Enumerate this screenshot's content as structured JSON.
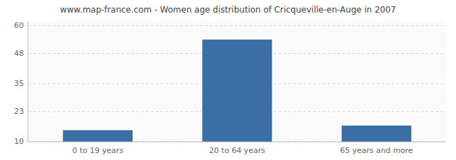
{
  "chart_data": {
    "type": "bar",
    "title": "www.map-france.com - Women age distribution of Cricqueville-en-Auge in 2007",
    "categories": [
      "0 to 19 years",
      "20 to 64 years",
      "65 years and more"
    ],
    "values": [
      15,
      54,
      17
    ],
    "color": "#3a6ea5",
    "ylim": [
      10,
      62
    ],
    "yticks": [
      10,
      23,
      35,
      48,
      60
    ],
    "grid": true
  }
}
